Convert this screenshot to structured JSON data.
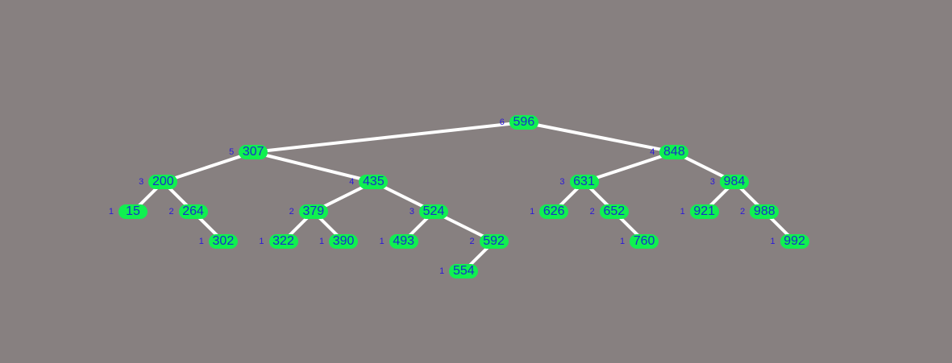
{
  "tree": {
    "root": {
      "key": "596",
      "height": "6",
      "left": {
        "key": "307",
        "height": "5",
        "left": {
          "key": "200",
          "height": "3",
          "left": {
            "key": "15",
            "height": "1"
          },
          "right": {
            "key": "264",
            "height": "2",
            "right": {
              "key": "302",
              "height": "1"
            }
          }
        },
        "right": {
          "key": "435",
          "height": "4",
          "left": {
            "key": "379",
            "height": "2",
            "left": {
              "key": "322",
              "height": "1"
            },
            "right": {
              "key": "390",
              "height": "1"
            }
          },
          "right": {
            "key": "524",
            "height": "3",
            "left": {
              "key": "493",
              "height": "1"
            },
            "right": {
              "key": "592",
              "height": "2",
              "left": {
                "key": "554",
                "height": "1"
              }
            }
          }
        }
      },
      "right": {
        "key": "848",
        "height": "4",
        "left": {
          "key": "631",
          "height": "3",
          "left": {
            "key": "626",
            "height": "1"
          },
          "right": {
            "key": "652",
            "height": "2",
            "right": {
              "key": "760",
              "height": "1"
            }
          }
        },
        "right": {
          "key": "984",
          "height": "3",
          "left": {
            "key": "921",
            "height": "1"
          },
          "right": {
            "key": "988",
            "height": "2",
            "right": {
              "key": "992",
              "height": "1"
            }
          }
        }
      }
    }
  },
  "colors": {
    "background": "#878080",
    "node_fill": "#10f050",
    "key_text": "#1a2ec8",
    "height_text": "#2a18d8",
    "edge": "#ffffff"
  }
}
